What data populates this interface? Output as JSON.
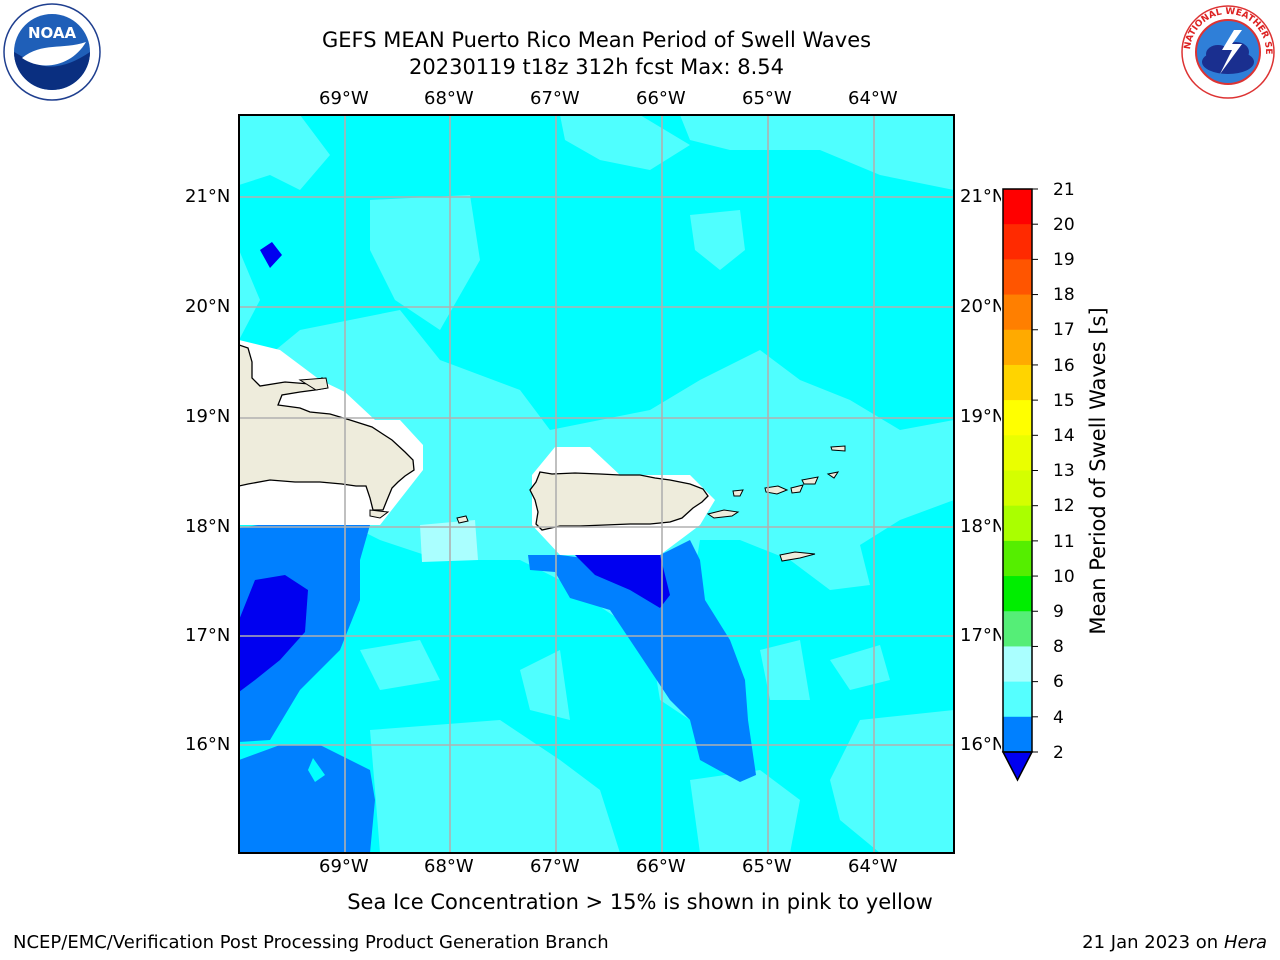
{
  "header": {
    "title_line1": "GEFS MEAN Puerto Rico Mean Period of Swell Waves",
    "title_line2": "20230119 t18z 312h fcst   Max: 8.54"
  },
  "logos": {
    "left": {
      "name": "NOAA",
      "ring_text": "NATIONAL OCEANIC AND ATMOSPHERIC ADMINISTRATION · U.S. DEPARTMENT OF COMMERCE"
    },
    "right": {
      "name": "NATIONAL WEATHER SERVICE"
    }
  },
  "map": {
    "lon_labels": [
      "69°W",
      "68°W",
      "67°W",
      "66°W",
      "65°W",
      "64°W"
    ],
    "lat_labels": [
      "21°N",
      "20°N",
      "19°N",
      "18°N",
      "17°N",
      "16°N"
    ],
    "colors": {
      "land": "#EEECDC",
      "ocean_base": "#00FFFF",
      "level_8": "#4FFFFF",
      "level_2": "#0080FF",
      "below_2": "#0000F0",
      "no_data": "#FFFFFF"
    }
  },
  "colorbar": {
    "label": "Mean Period of Swell Waves [s]",
    "ticks": [
      "21",
      "20",
      "19",
      "18",
      "17",
      "16",
      "15",
      "14",
      "13",
      "12",
      "11",
      "10",
      "9",
      "8",
      "6",
      "4",
      "2"
    ],
    "colors": [
      "#FF0000",
      "#FF2A00",
      "#FF5500",
      "#FF7F00",
      "#FFAA00",
      "#FFD400",
      "#FFFF00",
      "#EAFF00",
      "#D4FF00",
      "#AAFF00",
      "#55EE00",
      "#00EE00",
      "#55EE77",
      "#AAFFFF",
      "#55FFFF",
      "#00FFFF",
      "#0080FF"
    ],
    "extend_color": "#0000F0"
  },
  "footer": {
    "note": "Sea Ice Concentration > 15% is shown in pink to yellow",
    "credit": "NCEP/EMC/Verification Post Processing Product Generation Branch",
    "date": "21 Jan 2023 on ",
    "machine": "Hera"
  }
}
